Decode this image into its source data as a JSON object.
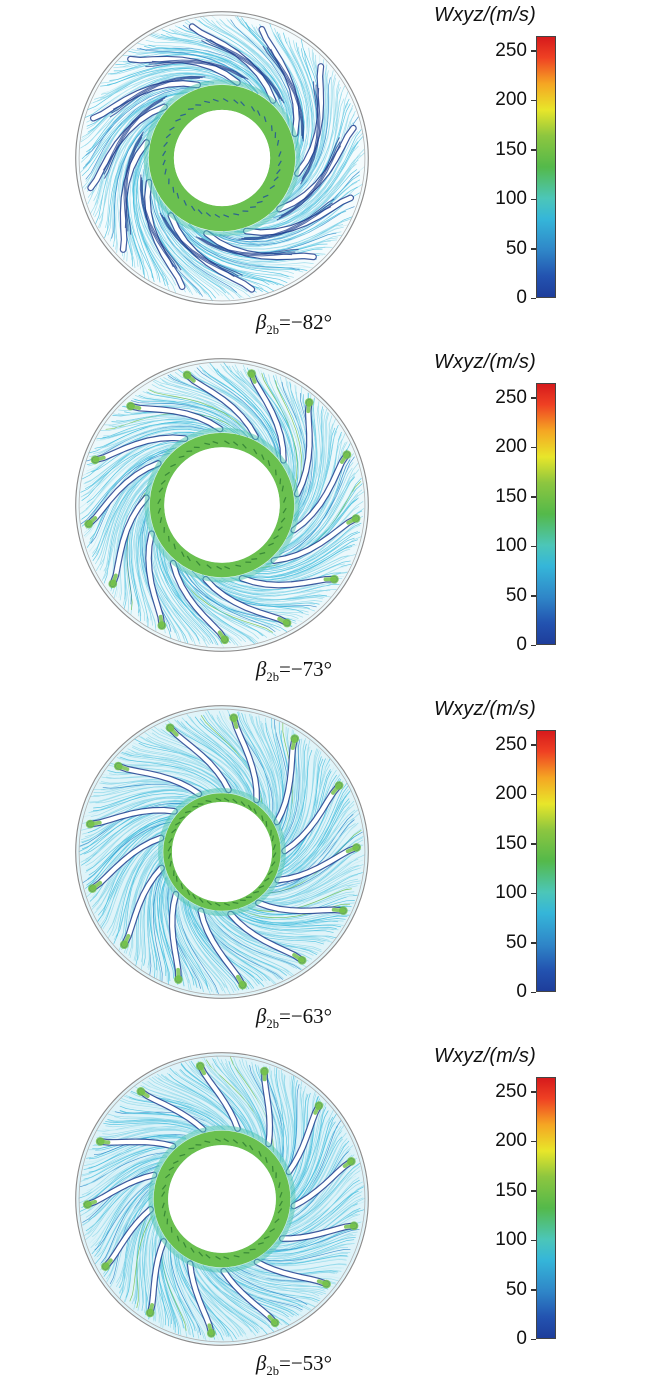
{
  "figure": {
    "colorbar_title": "Wxyz/(m/s)",
    "colorbar_max": 265,
    "colorbar_colors": [
      {
        "stop": 0.0,
        "color": "#1e3d9b"
      },
      {
        "stop": 0.08,
        "color": "#2353b0"
      },
      {
        "stop": 0.18,
        "color": "#2f86c8"
      },
      {
        "stop": 0.3,
        "color": "#35b6d9"
      },
      {
        "stop": 0.38,
        "color": "#4cc6b8"
      },
      {
        "stop": 0.5,
        "color": "#54b94a"
      },
      {
        "stop": 0.62,
        "color": "#8dc63f"
      },
      {
        "stop": 0.72,
        "color": "#e8e62a"
      },
      {
        "stop": 0.82,
        "color": "#f5a623"
      },
      {
        "stop": 0.92,
        "color": "#ef4123"
      },
      {
        "stop": 1.0,
        "color": "#d61a1c"
      }
    ],
    "palette": {
      "stream_light": "#8fd8ea",
      "stream_mid": "#46bede",
      "stream_pale": "#c6ecf4",
      "stream_deep": "#2e86c8",
      "blade_edge": "#27418f",
      "wake": "#1f3f8f",
      "hub_green": "#63bd46",
      "hub_teal": "#4fc3b0",
      "tip_green": "#6fbf44"
    }
  },
  "panels": [
    {
      "caption": {
        "symbol": "β",
        "sub": "2b",
        "value": "=−82°"
      },
      "colorbar": {
        "title": "Wxyz/(m/s)",
        "ticks": [
          250,
          200,
          150,
          100,
          50,
          0
        ]
      },
      "plot": {
        "blade_count": 12,
        "blade_phase": 0.3,
        "blade_sweep": 0.95,
        "swirl": 1.35,
        "stream_count": 300,
        "hole_radius": 50,
        "green_ring_width": 26,
        "dark_wakes": true,
        "green_tips": false,
        "bg_tint": "#f4fbfd",
        "hub_arrow": "#1f4f9c"
      }
    },
    {
      "caption": {
        "symbol": "β",
        "sub": "2b",
        "value": "=−73°"
      },
      "colorbar": {
        "title": "Wxyz/(m/s)",
        "ticks": [
          250,
          200,
          150,
          100,
          50,
          0
        ]
      },
      "plot": {
        "blade_count": 13,
        "blade_phase": 0.1,
        "blade_sweep": 0.72,
        "swirl": 1.05,
        "stream_count": 340,
        "hole_radius": 60,
        "green_ring_width": 15,
        "dark_wakes": false,
        "green_tips": true,
        "bg_tint": "#ecf8fb",
        "hub_arrow": "#2e7d32"
      }
    },
    {
      "caption": {
        "symbol": "β",
        "sub": "2b",
        "value": "=−63°"
      },
      "colorbar": {
        "title": "Wxyz/(m/s)",
        "ticks": [
          250,
          200,
          150,
          100,
          50,
          0
        ]
      },
      "plot": {
        "blade_count": 13,
        "blade_phase": 0.45,
        "blade_sweep": 0.5,
        "swirl": 0.85,
        "stream_count": 400,
        "hole_radius": 52,
        "green_ring_width": 9,
        "dark_wakes": false,
        "green_tips": true,
        "bg_tint": "#e0f4f9",
        "hub_arrow": "#2e7d32"
      }
    },
    {
      "caption": {
        "symbol": "β",
        "sub": "2b",
        "value": "=−53°"
      },
      "colorbar": {
        "title": "Wxyz/(m/s)",
        "ticks": [
          250,
          200,
          150,
          100,
          50,
          0
        ]
      },
      "plot": {
        "blade_count": 13,
        "blade_phase": 0.2,
        "blade_sweep": 0.38,
        "swirl": 0.7,
        "stream_count": 420,
        "hole_radius": 56,
        "green_ring_width": 15,
        "dark_wakes": false,
        "green_tips": true,
        "bg_tint": "#def3f9",
        "hub_arrow": "#2e7d32"
      }
    }
  ],
  "chart_data": [
    {
      "type": "heatmap",
      "subtype": "streamline-velocity-contour",
      "title": "β2b=−82°",
      "colorbar_label": "Wxyz/(m/s)",
      "colorbar_ticks": [
        0,
        50,
        100,
        150,
        200,
        250
      ],
      "colorbar_range": [
        0,
        265
      ],
      "legend_position": "right",
      "blade_count": 12,
      "description": "Relative velocity streamlines in circular impeller cross-section; bulk flow ~60–110 m/s (cyan), ~130 m/s green ring at hub, dark-blue low-speed wakes (~0–30 m/s) along 12 backswept blades"
    },
    {
      "type": "heatmap",
      "subtype": "streamline-velocity-contour",
      "title": "β2b=−73°",
      "colorbar_label": "Wxyz/(m/s)",
      "colorbar_ticks": [
        0,
        50,
        100,
        150,
        200,
        250
      ],
      "colorbar_range": [
        0,
        265
      ],
      "legend_position": "right",
      "blade_count": 13,
      "description": "Relative velocity streamlines; cyan ~60–110 m/s bulk flow, thinner green (~130 m/s) hub ring, 13 blades with small green high-speed spots at blade tips"
    },
    {
      "type": "heatmap",
      "subtype": "streamline-velocity-contour",
      "title": "β2b=−63°",
      "colorbar_label": "Wxyz/(m/s)",
      "colorbar_ticks": [
        0,
        50,
        100,
        150,
        200,
        250
      ],
      "colorbar_range": [
        0,
        265
      ],
      "legend_position": "right",
      "blade_count": 13,
      "description": "Relative velocity streamlines; more uniform cyan field ~70–110 m/s, faint green ring at hub, 13 less-swept blades with green tip regions near outer rim"
    },
    {
      "type": "heatmap",
      "subtype": "streamline-velocity-contour",
      "title": "β2b=−53°",
      "colorbar_label": "Wxyz/(m/s)",
      "colorbar_ticks": [
        0,
        50,
        100,
        150,
        200,
        250
      ],
      "colorbar_range": [
        0,
        265
      ],
      "legend_position": "right",
      "blade_count": 13,
      "description": "Relative velocity streamlines; dense cyan field ~70–110 m/s, green (~130 m/s) ring around hub bore, 13 nearly radial blades with green tip spots"
    }
  ]
}
